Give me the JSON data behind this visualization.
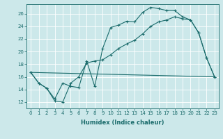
{
  "xlabel": "Humidex (Indice chaleur)",
  "bg_color": "#cce8ea",
  "line_color": "#1a6b6b",
  "grid_color": "#ffffff",
  "xlim": [
    -0.5,
    23.5
  ],
  "ylim": [
    11,
    27.5
  ],
  "yticks": [
    12,
    14,
    16,
    18,
    20,
    22,
    24,
    26
  ],
  "xticks": [
    0,
    1,
    2,
    3,
    4,
    5,
    6,
    7,
    8,
    9,
    10,
    11,
    12,
    13,
    14,
    15,
    16,
    17,
    18,
    19,
    20,
    21,
    22,
    23
  ],
  "line1_x": [
    0,
    1,
    2,
    3,
    4,
    5,
    6,
    7,
    8,
    9,
    10,
    11,
    12,
    13,
    14,
    15,
    16,
    17,
    18,
    19,
    20,
    21,
    22,
    23
  ],
  "line1_y": [
    16.7,
    15.0,
    14.2,
    12.5,
    15.0,
    14.5,
    14.3,
    18.5,
    14.5,
    20.5,
    23.8,
    24.2,
    24.8,
    24.7,
    26.2,
    27.0,
    26.8,
    26.5,
    26.5,
    25.5,
    25.0,
    23.0,
    19.0,
    16.0
  ],
  "line2_x": [
    0,
    1,
    2,
    3,
    4,
    5,
    6,
    7,
    8,
    9,
    10,
    11,
    12,
    13,
    14,
    15,
    16,
    17,
    18,
    19,
    20,
    21,
    22,
    23
  ],
  "line2_y": [
    16.7,
    15.0,
    14.2,
    12.2,
    12.0,
    15.0,
    16.0,
    18.2,
    18.5,
    18.7,
    19.5,
    20.5,
    21.2,
    21.8,
    22.8,
    24.0,
    24.7,
    25.0,
    25.5,
    25.2,
    25.0,
    23.0,
    19.0,
    16.0
  ],
  "line3_x": [
    0,
    23
  ],
  "line3_y": [
    16.7,
    16.0
  ],
  "xlabel_fontsize": 6,
  "tick_fontsize": 5
}
